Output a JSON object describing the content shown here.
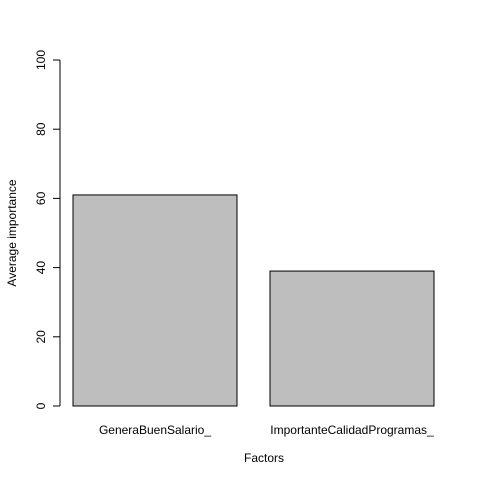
{
  "chart_data": {
    "type": "bar",
    "title": "",
    "xlabel": "Factors",
    "ylabel": "Average importance",
    "categories": [
      "GeneraBuenSalario_",
      "ImportanteCalidadProgramas_"
    ],
    "values": [
      61,
      39
    ],
    "ylim": [
      0,
      100
    ],
    "yticks": [
      0,
      20,
      40,
      60,
      80,
      100
    ],
    "ytick_labels": [
      "0",
      "20",
      "40",
      "60",
      "80",
      "100"
    ],
    "grid": false,
    "legend": "none",
    "bar_fill_color": "#bebebe",
    "bar_edge_color": "#000000"
  }
}
